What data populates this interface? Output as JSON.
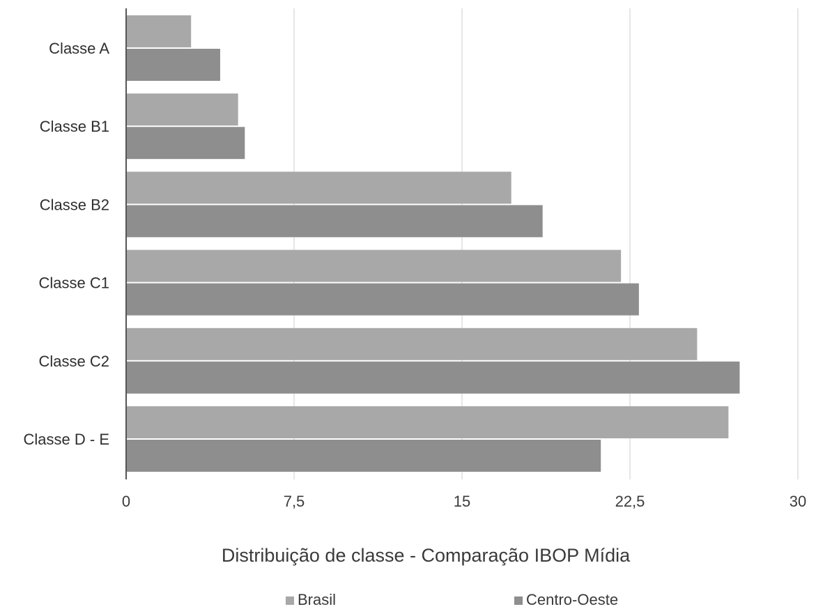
{
  "chart_data": {
    "type": "bar",
    "orientation": "horizontal",
    "title": "Distribuição de classe - Comparação IBOP Mídia",
    "xlabel": "",
    "ylabel": "",
    "categories": [
      "Classe A",
      "Classe B1",
      "Classe B2",
      "Classe C1",
      "Classe C2",
      "Classe D - E"
    ],
    "series": [
      {
        "name": "Brasil",
        "color": "#a8a8a8",
        "values": [
          2.9,
          5.0,
          17.2,
          22.1,
          25.5,
          26.9
        ]
      },
      {
        "name": "Centro-Oeste",
        "color": "#8e8e8e",
        "values": [
          4.2,
          5.3,
          18.6,
          22.9,
          27.4,
          21.2
        ]
      }
    ],
    "xlim": [
      0,
      30
    ],
    "x_ticks": [
      "0",
      "7,5",
      "15",
      "22,5",
      "30"
    ],
    "grid": "vertical",
    "legend_position": "bottom"
  }
}
